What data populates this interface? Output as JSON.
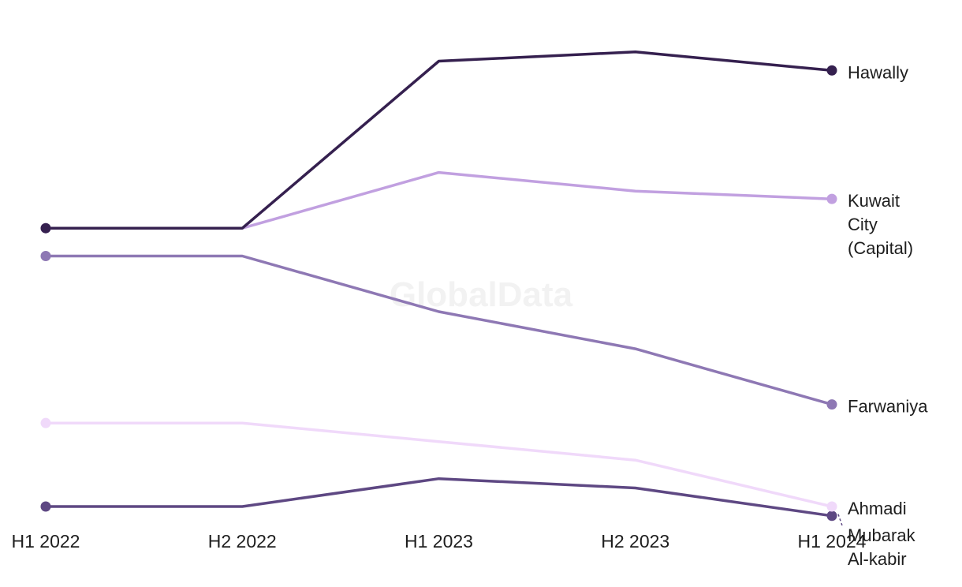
{
  "watermark": "GlobalData",
  "chart_data": {
    "type": "line",
    "categories": [
      "H1 2022",
      "H2 2022",
      "H1 2023",
      "H2 2023",
      "H1 2024"
    ],
    "ylim": [
      0,
      100
    ],
    "grid": false,
    "legend": "labels at line ends",
    "series": [
      {
        "name": "Hawally",
        "color": "#35204f",
        "values": [
          60,
          60,
          96,
          98,
          94
        ]
      },
      {
        "name": "Kuwait City (Capital)",
        "color": "#c1a0e0",
        "values": [
          60,
          60,
          72,
          68,
          66.3
        ]
      },
      {
        "name": "Farwaniya",
        "color": "#8e78b4",
        "values": [
          54,
          54,
          42,
          34,
          22
        ]
      },
      {
        "name": "Ahmadi",
        "color": "#f0d9fa",
        "values": [
          18,
          18,
          14,
          10,
          0
        ]
      },
      {
        "name": "Mubarak Al-kabir",
        "color": "#5e4883",
        "values": [
          0,
          0,
          6,
          4,
          -2
        ]
      }
    ]
  }
}
